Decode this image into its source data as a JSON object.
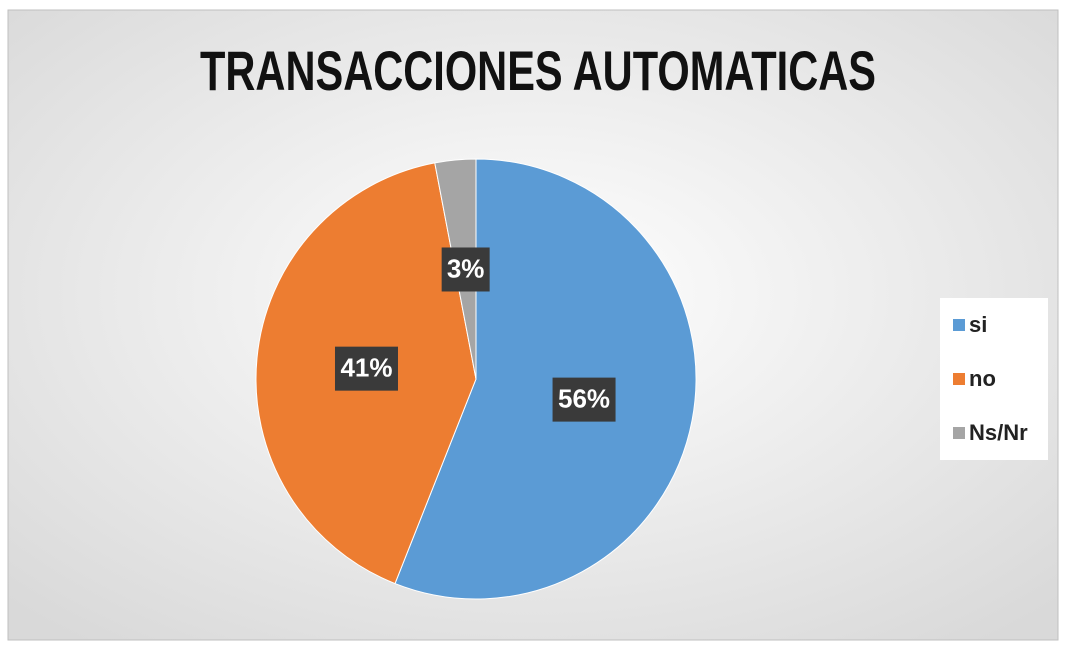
{
  "chart_data": {
    "type": "pie",
    "title": "TRANSACCIONES AUTOMATICAS",
    "categories": [
      "si",
      "no",
      "Ns/Nr"
    ],
    "values": [
      56,
      41,
      3
    ],
    "value_labels": [
      "56%",
      "41%",
      "3%"
    ],
    "colors": [
      "#5b9bd5",
      "#ed7d31",
      "#a5a5a5"
    ],
    "legend": "right"
  }
}
